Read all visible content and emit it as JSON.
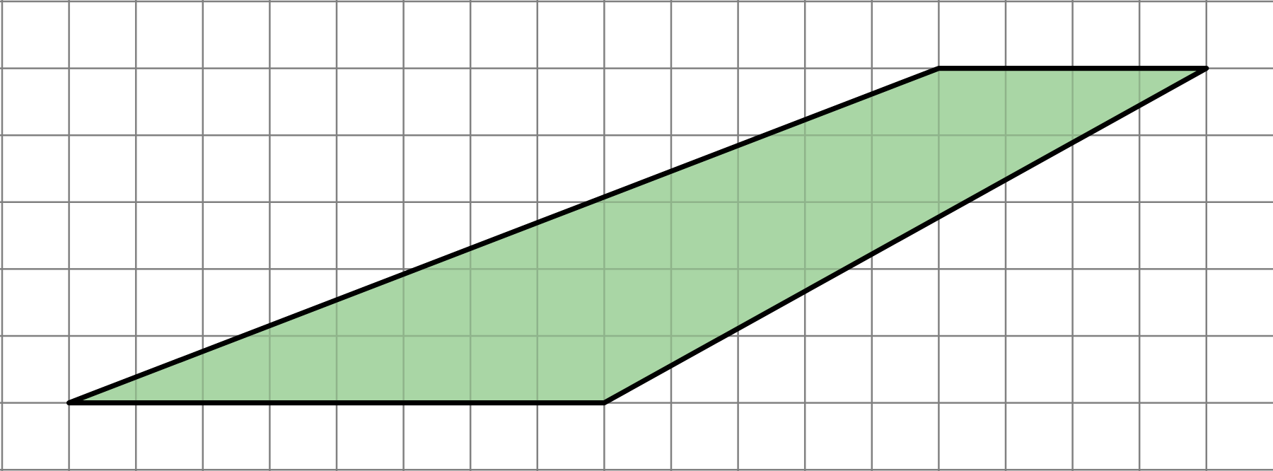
{
  "figure": {
    "description_type": "trapezoid-on-grid",
    "grid": {
      "columns": 19,
      "rows": 7,
      "line_color": "#808080"
    },
    "shape": {
      "name": "trapezoid",
      "fill_color": "#a9d6a5",
      "stroke_color": "#000000",
      "vertices_grid_units": [
        [
          1,
          6
        ],
        [
          9,
          6
        ],
        [
          18,
          1
        ],
        [
          14,
          1
        ]
      ]
    }
  }
}
